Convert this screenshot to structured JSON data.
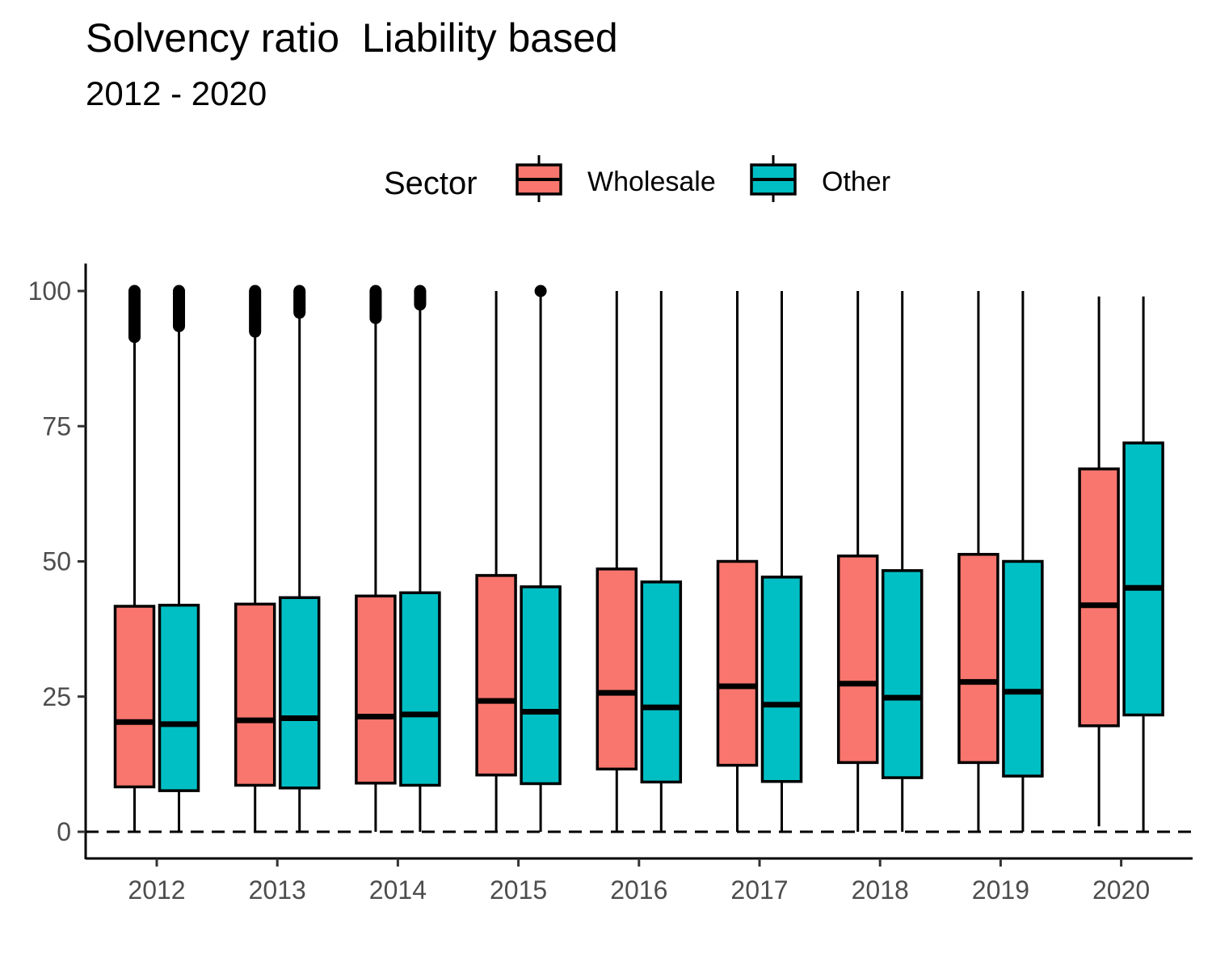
{
  "chart_data": {
    "type": "boxplot",
    "title": "Solvency ratio  Liability based",
    "subtitle": "2012 - 2020",
    "xlabel": "",
    "ylabel": "",
    "ylim": [
      -5,
      105
    ],
    "y_ticks": [
      0,
      25,
      50,
      75,
      100
    ],
    "reference_line": {
      "y": 0,
      "style": "dashed"
    },
    "legend": {
      "title": "Sector",
      "position": "top"
    },
    "grid": false,
    "categories": [
      "2012",
      "2013",
      "2014",
      "2015",
      "2016",
      "2017",
      "2018",
      "2019",
      "2020"
    ],
    "series": [
      {
        "name": "Wholesale",
        "color": "#F8766D",
        "boxes": [
          {
            "min": 0,
            "q1": 8.3,
            "median": 20.3,
            "q3": 41.7,
            "max": 91.5,
            "outliers": [
              91.5,
              100
            ]
          },
          {
            "min": 0,
            "q1": 8.6,
            "median": 20.6,
            "q3": 42.1,
            "max": 92.5,
            "outliers": [
              92.5,
              100
            ]
          },
          {
            "min": 0,
            "q1": 9.0,
            "median": 21.3,
            "q3": 43.6,
            "max": 95.0,
            "outliers": [
              95.0,
              100
            ]
          },
          {
            "min": 0,
            "q1": 10.5,
            "median": 24.2,
            "q3": 47.4,
            "max": 100,
            "outliers": []
          },
          {
            "min": 0,
            "q1": 11.6,
            "median": 25.7,
            "q3": 48.6,
            "max": 100,
            "outliers": []
          },
          {
            "min": 0,
            "q1": 12.3,
            "median": 26.9,
            "q3": 50.0,
            "max": 100,
            "outliers": []
          },
          {
            "min": 0,
            "q1": 12.8,
            "median": 27.4,
            "q3": 51.0,
            "max": 100,
            "outliers": []
          },
          {
            "min": 0,
            "q1": 12.8,
            "median": 27.7,
            "q3": 51.3,
            "max": 100,
            "outliers": []
          },
          {
            "min": 1,
            "q1": 19.6,
            "median": 41.9,
            "q3": 67.1,
            "max": 99,
            "outliers": []
          }
        ]
      },
      {
        "name": "Other",
        "color": "#00BFC4",
        "boxes": [
          {
            "min": 0,
            "q1": 7.6,
            "median": 19.9,
            "q3": 41.9,
            "max": 93.5,
            "outliers": [
              93.5,
              100
            ]
          },
          {
            "min": 0,
            "q1": 8.1,
            "median": 21.0,
            "q3": 43.3,
            "max": 96.0,
            "outliers": [
              96.0,
              100
            ]
          },
          {
            "min": 0,
            "q1": 8.6,
            "median": 21.7,
            "q3": 44.2,
            "max": 97.5,
            "outliers": [
              97.5,
              100
            ]
          },
          {
            "min": 0,
            "q1": 8.9,
            "median": 22.2,
            "q3": 45.3,
            "max": 100,
            "outliers": [
              100
            ]
          },
          {
            "min": 0,
            "q1": 9.2,
            "median": 23.0,
            "q3": 46.2,
            "max": 100,
            "outliers": []
          },
          {
            "min": 0,
            "q1": 9.3,
            "median": 23.5,
            "q3": 47.1,
            "max": 100,
            "outliers": []
          },
          {
            "min": 0,
            "q1": 10.0,
            "median": 24.8,
            "q3": 48.3,
            "max": 100,
            "outliers": []
          },
          {
            "min": 0,
            "q1": 10.3,
            "median": 25.9,
            "q3": 50.0,
            "max": 100,
            "outliers": []
          },
          {
            "min": 0,
            "q1": 21.6,
            "median": 45.1,
            "q3": 71.9,
            "max": 99,
            "outliers": []
          }
        ]
      }
    ]
  }
}
